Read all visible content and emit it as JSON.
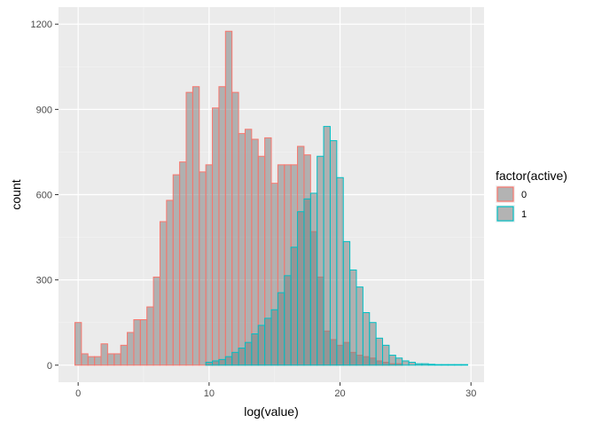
{
  "chart_data": {
    "type": "bar",
    "xlabel": "log(value)",
    "ylabel": "count",
    "xlim": [
      -1.5,
      31
    ],
    "ylim": [
      -60,
      1260
    ],
    "x_ticks": [
      "0",
      "10",
      "20",
      "30"
    ],
    "y_ticks": [
      "0",
      "300",
      "600",
      "900",
      "1200"
    ],
    "grid": true,
    "legend_position": "right",
    "legend_title": "factor(active)",
    "bin_width": 0.5,
    "series": [
      {
        "name": "0",
        "outline_color": "#F8766D",
        "fill_color": "#7f7f7f",
        "fill_opacity": 0.55,
        "x": [
          0,
          0.5,
          1,
          1.5,
          2,
          2.5,
          3,
          3.5,
          4,
          4.5,
          5,
          5.5,
          6,
          6.5,
          7,
          7.5,
          8,
          8.5,
          9,
          9.5,
          10,
          10.5,
          11,
          11.5,
          12,
          12.5,
          13,
          13.5,
          14,
          14.5,
          15,
          15.5,
          16,
          16.5,
          17,
          17.5,
          18,
          18.5,
          19,
          19.5,
          20,
          20.5,
          21,
          21.5,
          22,
          22.5,
          23,
          23.5,
          24,
          24.5
        ],
        "values": [
          150,
          40,
          30,
          30,
          75,
          40,
          40,
          70,
          115,
          160,
          160,
          205,
          310,
          505,
          580,
          670,
          715,
          960,
          980,
          680,
          705,
          905,
          980,
          1175,
          960,
          815,
          830,
          795,
          735,
          800,
          640,
          705,
          705,
          705,
          770,
          740,
          470,
          310,
          120,
          90,
          70,
          80,
          45,
          35,
          30,
          25,
          15,
          10,
          5,
          5
        ]
      },
      {
        "name": "1",
        "outline_color": "#00BFC4",
        "fill_color": "#7f7f7f",
        "fill_opacity": 0.55,
        "x": [
          10,
          10.5,
          11,
          11.5,
          12,
          12.5,
          13,
          13.5,
          14,
          14.5,
          15,
          15.5,
          16,
          16.5,
          17,
          17.5,
          18,
          18.5,
          19,
          19.5,
          20,
          20.5,
          21,
          21.5,
          22,
          22.5,
          23,
          23.5,
          24,
          24.5,
          25,
          25.5,
          26,
          26.5,
          27,
          27.5,
          28,
          28.5,
          29,
          29.5
        ],
        "values": [
          10,
          15,
          20,
          30,
          45,
          60,
          80,
          110,
          140,
          165,
          195,
          255,
          315,
          415,
          540,
          585,
          605,
          735,
          840,
          790,
          660,
          435,
          335,
          275,
          185,
          150,
          95,
          70,
          35,
          25,
          15,
          10,
          5,
          5,
          3,
          2,
          2,
          2,
          2,
          2
        ]
      }
    ]
  }
}
